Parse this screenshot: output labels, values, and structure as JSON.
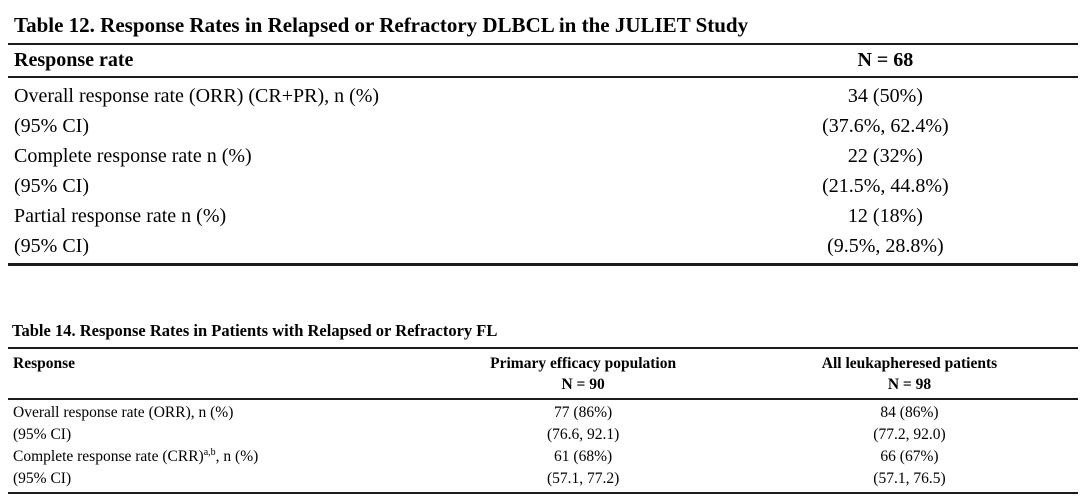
{
  "colors": {
    "background": "#ffffff",
    "text": "#000000",
    "rule": "#1c1c1c"
  },
  "table12": {
    "title": "Table 12. Response Rates in Relapsed or Refractory DLBCL in the JULIET Study",
    "header": {
      "response": "Response rate",
      "n": "N = 68"
    },
    "rows": [
      {
        "label": "Overall response rate (ORR) (CR+PR), n (%)",
        "value": "34 (50%)"
      },
      {
        "label": "(95% CI)",
        "value": "(37.6%, 62.4%)"
      },
      {
        "label": "Complete response rate n (%)",
        "value": "22 (32%)"
      },
      {
        "label": "(95% CI)",
        "value": "(21.5%, 44.8%)"
      },
      {
        "label": "Partial response rate n (%)",
        "value": "12 (18%)"
      },
      {
        "label": "(95% CI)",
        "value": "(9.5%, 28.8%)"
      }
    ]
  },
  "table14": {
    "title": "Table 14. Response Rates in Patients with Relapsed or Refractory FL",
    "header": {
      "response": "Response",
      "col1_line1": "Primary efficacy population",
      "col1_line2": "N = 90",
      "col2_line1": "All leukapheresed patients",
      "col2_line2": "N = 98"
    },
    "rows": [
      {
        "label": "Overall response rate (ORR), n (%)",
        "sup": "",
        "suffix": "",
        "value1": "77 (86%)",
        "value2": "84 (86%)"
      },
      {
        "label": "(95% CI)",
        "sup": "",
        "suffix": "",
        "value1": "(76.6, 92.1)",
        "value2": "(77.2, 92.0)"
      },
      {
        "label": "Complete response rate (CRR)",
        "sup": "a,b",
        "suffix": ", n (%)",
        "value1": "61 (68%)",
        "value2": "66 (67%)"
      },
      {
        "label": "(95% CI)",
        "sup": "",
        "suffix": "",
        "value1": "(57.1, 77.2)",
        "value2": "(57.1, 76.5)"
      }
    ]
  }
}
